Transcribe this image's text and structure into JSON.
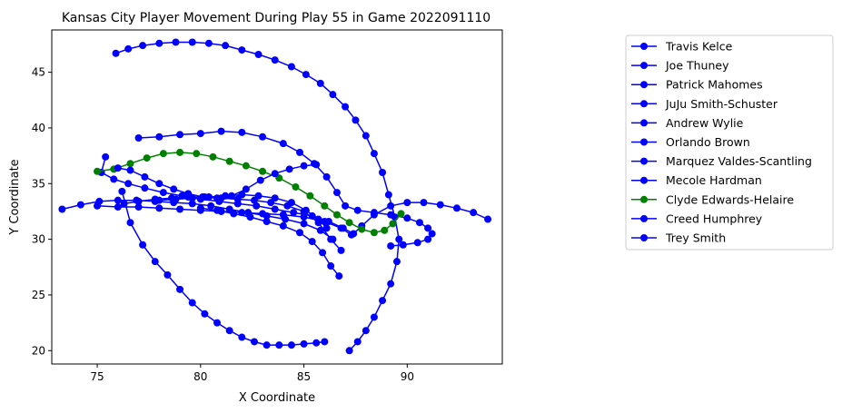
{
  "chart_data": {
    "type": "line",
    "title": "Kansas City Player Movement During Play 55 in Game 2022091110",
    "xlabel": "X Coordinate",
    "ylabel": "Y Coordinate",
    "xlim": [
      72.8,
      94.6
    ],
    "ylim": [
      18.8,
      48.8
    ],
    "xticks": [
      75,
      80,
      85,
      90
    ],
    "yticks": [
      20,
      25,
      30,
      35,
      40,
      45
    ],
    "grid": false,
    "legend_position": "right, outside plot",
    "marker": "circle",
    "series": [
      {
        "name": "Travis Kelce",
        "color": "#0000ff",
        "x": [
          75.9,
          76.5,
          77.2,
          78.0,
          78.8,
          79.6,
          80.4,
          81.2,
          82.0,
          82.8,
          83.6,
          84.4,
          85.1,
          85.8,
          86.4,
          87.0,
          87.5,
          88.0,
          88.4,
          88.8,
          89.1,
          89.4,
          89.6,
          89.5,
          89.2,
          88.8,
          88.4,
          88.0,
          87.6,
          87.2
        ],
        "y": [
          46.7,
          47.1,
          47.4,
          47.6,
          47.7,
          47.7,
          47.6,
          47.4,
          47.0,
          46.6,
          46.1,
          45.5,
          44.8,
          44.0,
          43.0,
          41.9,
          40.7,
          39.3,
          37.7,
          36.0,
          34.0,
          32.0,
          30.0,
          28.0,
          26.0,
          24.5,
          23.0,
          21.8,
          20.8,
          20.0
        ]
      },
      {
        "name": "Joe Thuney",
        "color": "#0000ff",
        "x": [
          75.0,
          76.0,
          77.0,
          78.0,
          79.0,
          80.0,
          81.0,
          82.0,
          83.0,
          84.0,
          85.0,
          86.0,
          86.8,
          87.3
        ],
        "y": [
          33.0,
          32.9,
          32.9,
          32.8,
          32.7,
          32.6,
          32.5,
          32.4,
          32.3,
          32.2,
          32.0,
          31.6,
          31.0,
          30.4
        ]
      },
      {
        "name": "Patrick Mahomes",
        "color": "#0000ff",
        "x": [
          76.3,
          77.0,
          77.8,
          78.6,
          79.4,
          80.2,
          81.0,
          81.8,
          82.6,
          83.4,
          84.2,
          85.0,
          85.7,
          86.3,
          86.8
        ],
        "y": [
          33.2,
          33.4,
          33.6,
          33.7,
          33.8,
          33.8,
          33.7,
          33.6,
          33.5,
          33.3,
          33.0,
          32.5,
          31.5,
          30.0,
          29.0
        ]
      },
      {
        "name": "JuJu Smith-Schuster",
        "color": "#0000ff",
        "x": [
          76.2,
          76.6,
          77.2,
          77.8,
          78.4,
          79.0,
          79.6,
          80.2,
          80.8,
          81.4,
          82.0,
          82.6,
          83.2,
          83.8,
          84.4,
          85.0,
          85.6,
          86.0
        ],
        "y": [
          34.3,
          31.5,
          29.5,
          28.0,
          26.8,
          25.5,
          24.3,
          23.3,
          22.5,
          21.8,
          21.2,
          20.8,
          20.5,
          20.5,
          20.5,
          20.6,
          20.7,
          20.8
        ]
      },
      {
        "name": "Andrew Wylie",
        "color": "#0000ff",
        "x": [
          80.0,
          80.8,
          81.6,
          82.4,
          83.2,
          84.0,
          84.8,
          85.4,
          85.9,
          86.3,
          86.7
        ],
        "y": [
          32.8,
          32.6,
          32.3,
          32.0,
          31.6,
          31.2,
          30.6,
          29.8,
          28.8,
          27.6,
          26.7
        ]
      },
      {
        "name": "Orlando Brown",
        "color": "#0000ff",
        "x": [
          73.3,
          74.2,
          75.1,
          76.0,
          76.9,
          77.8,
          78.7,
          79.6,
          80.5,
          81.4,
          82.3,
          83.2,
          84.1,
          85.0,
          85.8,
          86.4
        ],
        "y": [
          32.7,
          33.1,
          33.4,
          33.5,
          33.5,
          33.4,
          33.3,
          33.2,
          33.0,
          32.7,
          32.4,
          32.1,
          31.8,
          31.4,
          30.8,
          30.0
        ]
      },
      {
        "name": "Marquez Valdes-Scantling",
        "color": "#0000ff",
        "x": [
          77.0,
          78.0,
          79.0,
          80.0,
          81.0,
          82.0,
          83.0,
          84.0,
          84.8,
          85.5,
          86.1,
          86.6,
          87.0,
          87.6,
          88.4,
          89.2,
          90.0,
          90.6,
          91.0,
          91.2,
          91.0,
          90.5,
          89.8,
          89.2
        ],
        "y": [
          39.1,
          39.2,
          39.4,
          39.5,
          39.7,
          39.6,
          39.2,
          38.6,
          37.8,
          36.8,
          35.6,
          34.2,
          33.0,
          32.6,
          32.4,
          32.2,
          31.9,
          31.5,
          31.0,
          30.5,
          30.0,
          29.7,
          29.5,
          29.4
        ]
      },
      {
        "name": "Mecole Hardman",
        "color": "#0000ff",
        "x": [
          75.4,
          75.2,
          75.8,
          76.5,
          77.3,
          78.2,
          79.1,
          80.0,
          80.9,
          81.8,
          82.7,
          83.6,
          84.5,
          85.4,
          86.2,
          86.9,
          87.4,
          87.8,
          88.4,
          89.2,
          90.0,
          90.8,
          91.6,
          92.4,
          93.2,
          93.9
        ],
        "y": [
          37.4,
          36.0,
          35.4,
          35.0,
          34.6,
          34.2,
          33.9,
          33.6,
          33.4,
          33.2,
          33.0,
          32.7,
          32.4,
          32.1,
          31.6,
          31.0,
          30.5,
          31.2,
          32.2,
          33.0,
          33.3,
          33.3,
          33.1,
          32.8,
          32.4,
          31.8
        ]
      },
      {
        "name": "Clyde Edwards-Helaire",
        "color": "#008000",
        "x": [
          75.0,
          75.8,
          76.6,
          77.4,
          78.2,
          79.0,
          79.8,
          80.6,
          81.4,
          82.2,
          83.0,
          83.8,
          84.6,
          85.3,
          86.0,
          86.6,
          87.2,
          87.8,
          88.4,
          88.9,
          89.3,
          89.7
        ],
        "y": [
          36.1,
          36.3,
          36.8,
          37.3,
          37.7,
          37.8,
          37.7,
          37.4,
          37.0,
          36.6,
          36.1,
          35.5,
          34.7,
          33.9,
          33.0,
          32.2,
          31.5,
          30.9,
          30.6,
          30.8,
          31.4,
          32.3
        ]
      },
      {
        "name": "Creed Humphrey",
        "color": "#0000ff",
        "x": [
          78.0,
          78.8,
          79.6,
          80.4,
          81.2,
          82.0,
          82.8,
          83.6,
          84.4,
          85.1,
          85.7,
          86.1
        ],
        "y": [
          33.5,
          33.6,
          33.7,
          33.8,
          33.9,
          34.0,
          33.9,
          33.7,
          33.3,
          32.6,
          31.8,
          31.0
        ]
      },
      {
        "name": "Trey Smith",
        "color": "#0000ff",
        "x": [
          76.0,
          76.6,
          77.3,
          78.0,
          78.7,
          79.4,
          80.1,
          80.8,
          81.5,
          82.2,
          82.9,
          83.6,
          84.3,
          85.0,
          85.6
        ],
        "y": [
          36.4,
          36.2,
          35.6,
          35.0,
          34.5,
          34.1,
          33.8,
          33.7,
          33.9,
          34.5,
          35.3,
          35.9,
          36.3,
          36.6,
          36.7
        ]
      }
    ]
  }
}
